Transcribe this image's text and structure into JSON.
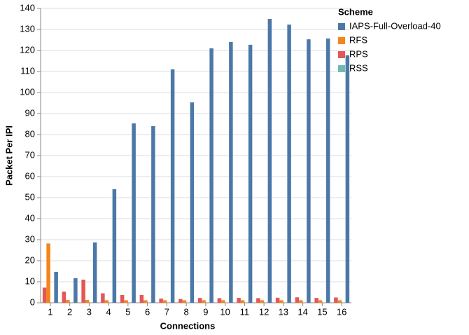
{
  "chart_data": {
    "type": "bar",
    "x_label": "Connections",
    "y_label": "Packet Per IPI",
    "legend_title": "Scheme",
    "categories": [
      "1",
      "2",
      "3",
      "4",
      "5",
      "6",
      "7",
      "8",
      "9",
      "10",
      "11",
      "12",
      "13",
      "14",
      "15",
      "16"
    ],
    "series": [
      {
        "name": "IAPS-Full-Overload-40",
        "color": "#4c78a8",
        "values": [
          14.7,
          11.7,
          28.7,
          54,
          85.3,
          84,
          111,
          95.3,
          121,
          124,
          122.7,
          135,
          132.3,
          125.3,
          125.7,
          117.7
        ]
      },
      {
        "name": "RFS",
        "color": "#f58518",
        "values": [
          28.2,
          1.3,
          1.3,
          1.2,
          1.2,
          1.2,
          1.2,
          1.2,
          1.2,
          1.2,
          1.2,
          1.2,
          1.2,
          1.2,
          1.2,
          1.2
        ]
      },
      {
        "name": "RPS",
        "color": "#e45756",
        "values": [
          7.2,
          5.3,
          11,
          4.5,
          3.7,
          3.7,
          2,
          1.8,
          2.3,
          2.2,
          2.3,
          2.2,
          2.4,
          2.6,
          2.3,
          2.5
        ]
      },
      {
        "name": "RSS",
        "color": "#72b7b2",
        "values": [
          0,
          0,
          0,
          0,
          0,
          0,
          0,
          0,
          0,
          0,
          0,
          0,
          0,
          0,
          0,
          0
        ]
      }
    ],
    "ylim": [
      0,
      140
    ],
    "yticks": [
      0,
      10,
      20,
      30,
      40,
      50,
      60,
      70,
      80,
      90,
      100,
      110,
      120,
      130,
      140
    ],
    "grid": true,
    "legend_position": "right"
  }
}
